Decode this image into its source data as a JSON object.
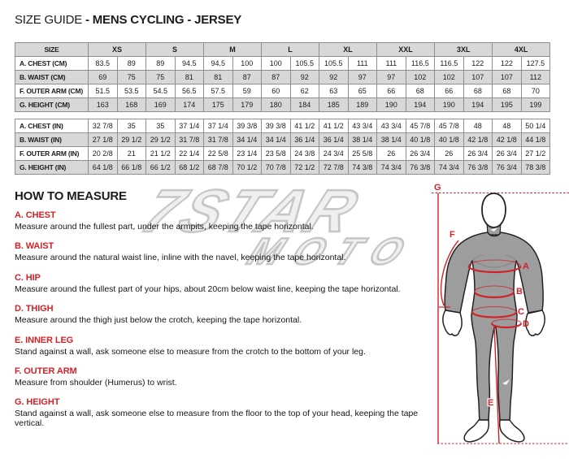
{
  "title": {
    "regular": "SIZE GUIDE ",
    "bold": "- MENS CYCLING - JERSEY"
  },
  "size_table": {
    "corner_label": "SIZE",
    "sizes": [
      "XS",
      "S",
      "M",
      "L",
      "XL",
      "XXL",
      "3XL",
      "4XL"
    ],
    "cm_rows": [
      {
        "label": "A. CHEST (CM)",
        "values": [
          "83.5",
          "89",
          "89",
          "94.5",
          "94.5",
          "100",
          "100",
          "105.5",
          "105.5",
          "111",
          "111",
          "116.5",
          "116.5",
          "122",
          "122",
          "127.5"
        ]
      },
      {
        "label": "B. WAIST (CM)",
        "values": [
          "69",
          "75",
          "75",
          "81",
          "81",
          "87",
          "87",
          "92",
          "92",
          "97",
          "97",
          "102",
          "102",
          "107",
          "107",
          "112"
        ]
      },
      {
        "label": "F. OUTER ARM (CM)",
        "values": [
          "51.5",
          "53.5",
          "54.5",
          "56.5",
          "57.5",
          "59",
          "60",
          "62",
          "63",
          "65",
          "66",
          "68",
          "66",
          "68",
          "68",
          "70"
        ]
      },
      {
        "label": "G. HEIGHT (CM)",
        "values": [
          "163",
          "168",
          "169",
          "174",
          "175",
          "179",
          "180",
          "184",
          "185",
          "189",
          "190",
          "194",
          "190",
          "194",
          "195",
          "199"
        ]
      }
    ],
    "in_rows": [
      {
        "label": "A. CHEST (IN)",
        "values": [
          "32 7/8",
          "35",
          "35",
          "37 1/4",
          "37 1/4",
          "39 3/8",
          "39 3/8",
          "41 1/2",
          "41 1/2",
          "43 3/4",
          "43 3/4",
          "45 7/8",
          "45 7/8",
          "48",
          "48",
          "50 1/4"
        ]
      },
      {
        "label": "B. WAIST (IN)",
        "values": [
          "27 1/8",
          "29 1/2",
          "29 1/2",
          "31 7/8",
          "31 7/8",
          "34 1/4",
          "34 1/4",
          "36 1/4",
          "36 1/4",
          "38 1/4",
          "38 1/4",
          "40 1/8",
          "40 1/8",
          "42 1/8",
          "42 1/8",
          "44 1/8"
        ]
      },
      {
        "label": "F. OUTER ARM (IN)",
        "values": [
          "20 2/8",
          "21",
          "21 1/2",
          "22 1/4",
          "22 5/8",
          "23 1/4",
          "23 5/8",
          "24 3/8",
          "24 3/4",
          "25 5/8",
          "26",
          "26 3/4",
          "26",
          "26 3/4",
          "26 3/4",
          "27 1/2"
        ]
      },
      {
        "label": "G. HEIGHT (IN)",
        "values": [
          "64 1/8",
          "66 1/8",
          "66 1/2",
          "68 1/2",
          "68 7/8",
          "70 1/2",
          "70 7/8",
          "72 1/2",
          "72 7/8",
          "74 3/8",
          "74 3/4",
          "76 3/8",
          "74 3/4",
          "76 3/8",
          "76 3/4",
          "78 3/8"
        ]
      }
    ]
  },
  "how_to_measure": {
    "heading": "HOW TO MEASURE",
    "sections": [
      {
        "label": "A. CHEST",
        "text": "Measure around the fullest part, under the armpits, keeping the tape horizontal."
      },
      {
        "label": "B. WAIST",
        "text": "Measure around the natural waist line, inline with the navel, keeping the tape horizontal."
      },
      {
        "label": "C. HIP",
        "text": "Measure around the fullest part of your hips, about 20cm below waist line, keeping the tape horizontal."
      },
      {
        "label": "D. THIGH",
        "text": "Measure around the thigh just below the crotch, keeping the tape horizontal."
      },
      {
        "label": "E. INNER LEG",
        "text": "Stand against a wall, ask someone else to measure from the crotch to the bottom of your leg."
      },
      {
        "label": "F. OUTER ARM",
        "text": "Measure from shoulder (Humerus) to wrist."
      },
      {
        "label": "G. HEIGHT",
        "text": "Stand against a wall, ask someone else to measure from the floor to the top of your head, keeping the tape vertical."
      }
    ]
  },
  "watermark": {
    "line1": "7STAR",
    "line2": "MOTO"
  },
  "diagram": {
    "labels": [
      "A",
      "B",
      "C",
      "D",
      "E",
      "F",
      "G"
    ]
  },
  "colors": {
    "accent_red": "#d22329",
    "row_gray": "#d8d8d8",
    "table_border": "#8f8f8f",
    "body_gray": "#9d9d9d",
    "watermark_gray": "#c6c6c6"
  }
}
